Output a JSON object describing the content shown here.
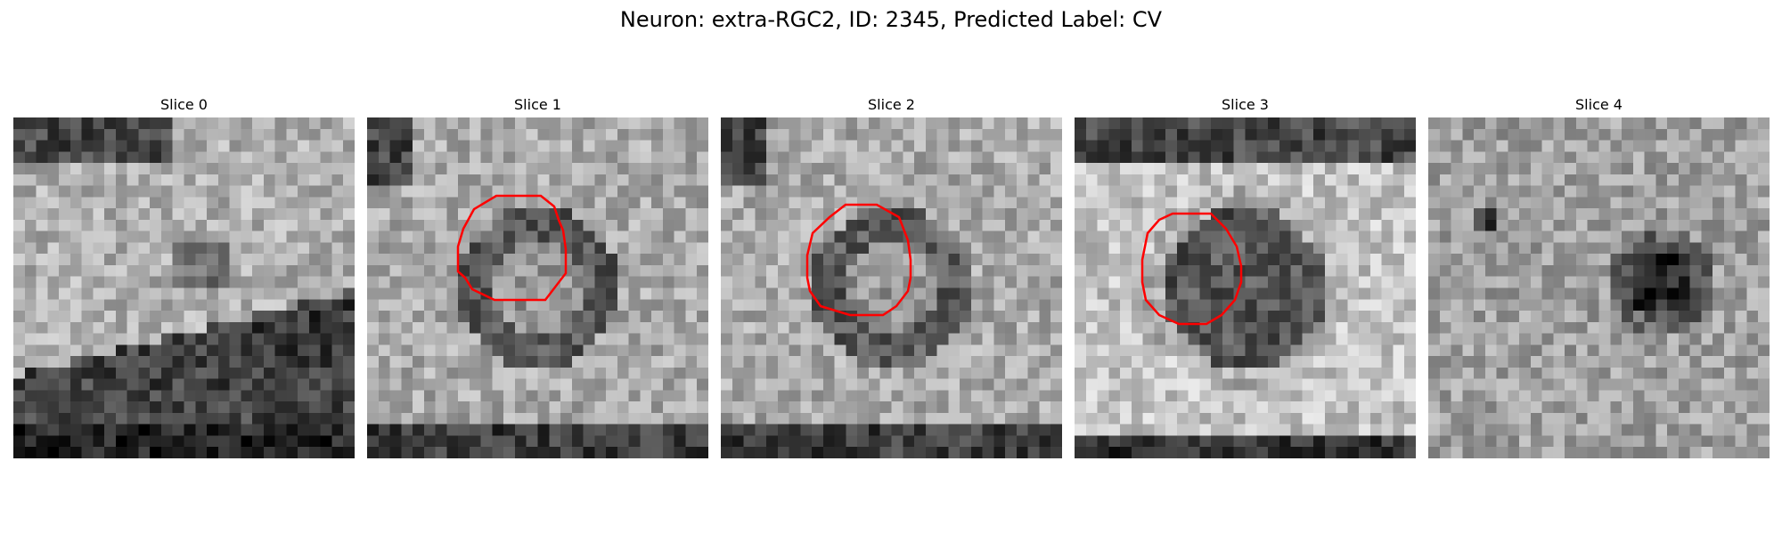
{
  "figure": {
    "title": "Neuron: extra-RGC2, ID: 2345, Predicted Label: CV",
    "contour_color": "#ff0000"
  },
  "panels": [
    {
      "title": "Slice 0",
      "kind": "membrane",
      "seed": 11,
      "contour": false
    },
    {
      "title": "Slice 1",
      "kind": "ring",
      "seed": 23,
      "contour": true
    },
    {
      "title": "Slice 2",
      "kind": "ring",
      "seed": 37,
      "contour": true
    },
    {
      "title": "Slice 3",
      "kind": "blob",
      "seed": 51,
      "contour": true
    },
    {
      "title": "Slice 4",
      "kind": "spot",
      "seed": 67,
      "contour": false
    }
  ]
}
